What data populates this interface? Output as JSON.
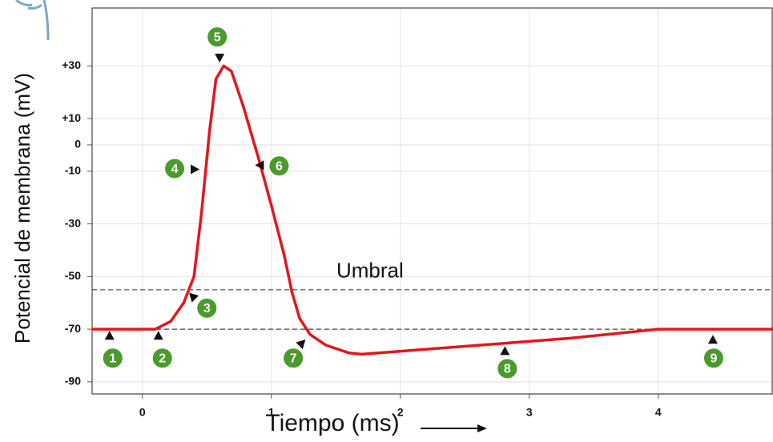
{
  "chart_data": {
    "type": "line",
    "x_label": "Tiempo (ms)",
    "y_label": "Potencial de membrana (mV)",
    "xlim": [
      -0.39,
      4.89
    ],
    "ylim": [
      -94.6,
      52
    ],
    "xticks": [
      0,
      1,
      2,
      3,
      4
    ],
    "yticks": [
      {
        "value": 30,
        "label": "+30"
      },
      {
        "value": 10,
        "label": "+10"
      },
      0,
      -10,
      -30,
      -50,
      -70,
      -90
    ],
    "grid": true,
    "series": [
      {
        "color": "#e3161d",
        "x": [
          -0.39,
          0.1,
          0.22,
          0.32,
          0.4,
          0.46,
          0.52,
          0.57,
          0.63,
          0.69,
          0.78,
          0.9,
          1.0,
          1.1,
          1.16,
          1.22,
          1.3,
          1.42,
          1.6,
          1.7,
          2.5,
          3.3,
          4.0,
          4.89
        ],
        "values": [
          -70,
          -70,
          -67,
          -60,
          -50,
          -25,
          5,
          25,
          30,
          28,
          15,
          -5,
          -23,
          -42,
          -56,
          -66,
          -72,
          -76,
          -79,
          -79.5,
          -76.5,
          -73.5,
          -70,
          -70
        ]
      }
    ],
    "reference_lines": [
      {
        "value": -55,
        "label": "Umbral"
      },
      {
        "value": -70
      }
    ],
    "annotations": [
      {
        "text": "1",
        "x": -0.23,
        "y": -81
      },
      {
        "text": "2",
        "x": 0.155,
        "y": -81
      },
      {
        "text": "3",
        "x": 0.5,
        "y": -62
      },
      {
        "text": "4",
        "x": 0.25,
        "y": -9
      },
      {
        "text": "5",
        "x": 0.58,
        "y": 41
      },
      {
        "text": "6",
        "x": 1.06,
        "y": -8
      },
      {
        "text": "7",
        "x": 1.17,
        "y": -81
      },
      {
        "text": "8",
        "x": 2.83,
        "y": -85
      },
      {
        "text": "9",
        "x": 4.43,
        "y": -81
      }
    ],
    "annotation_color": "#4a9a2c"
  }
}
